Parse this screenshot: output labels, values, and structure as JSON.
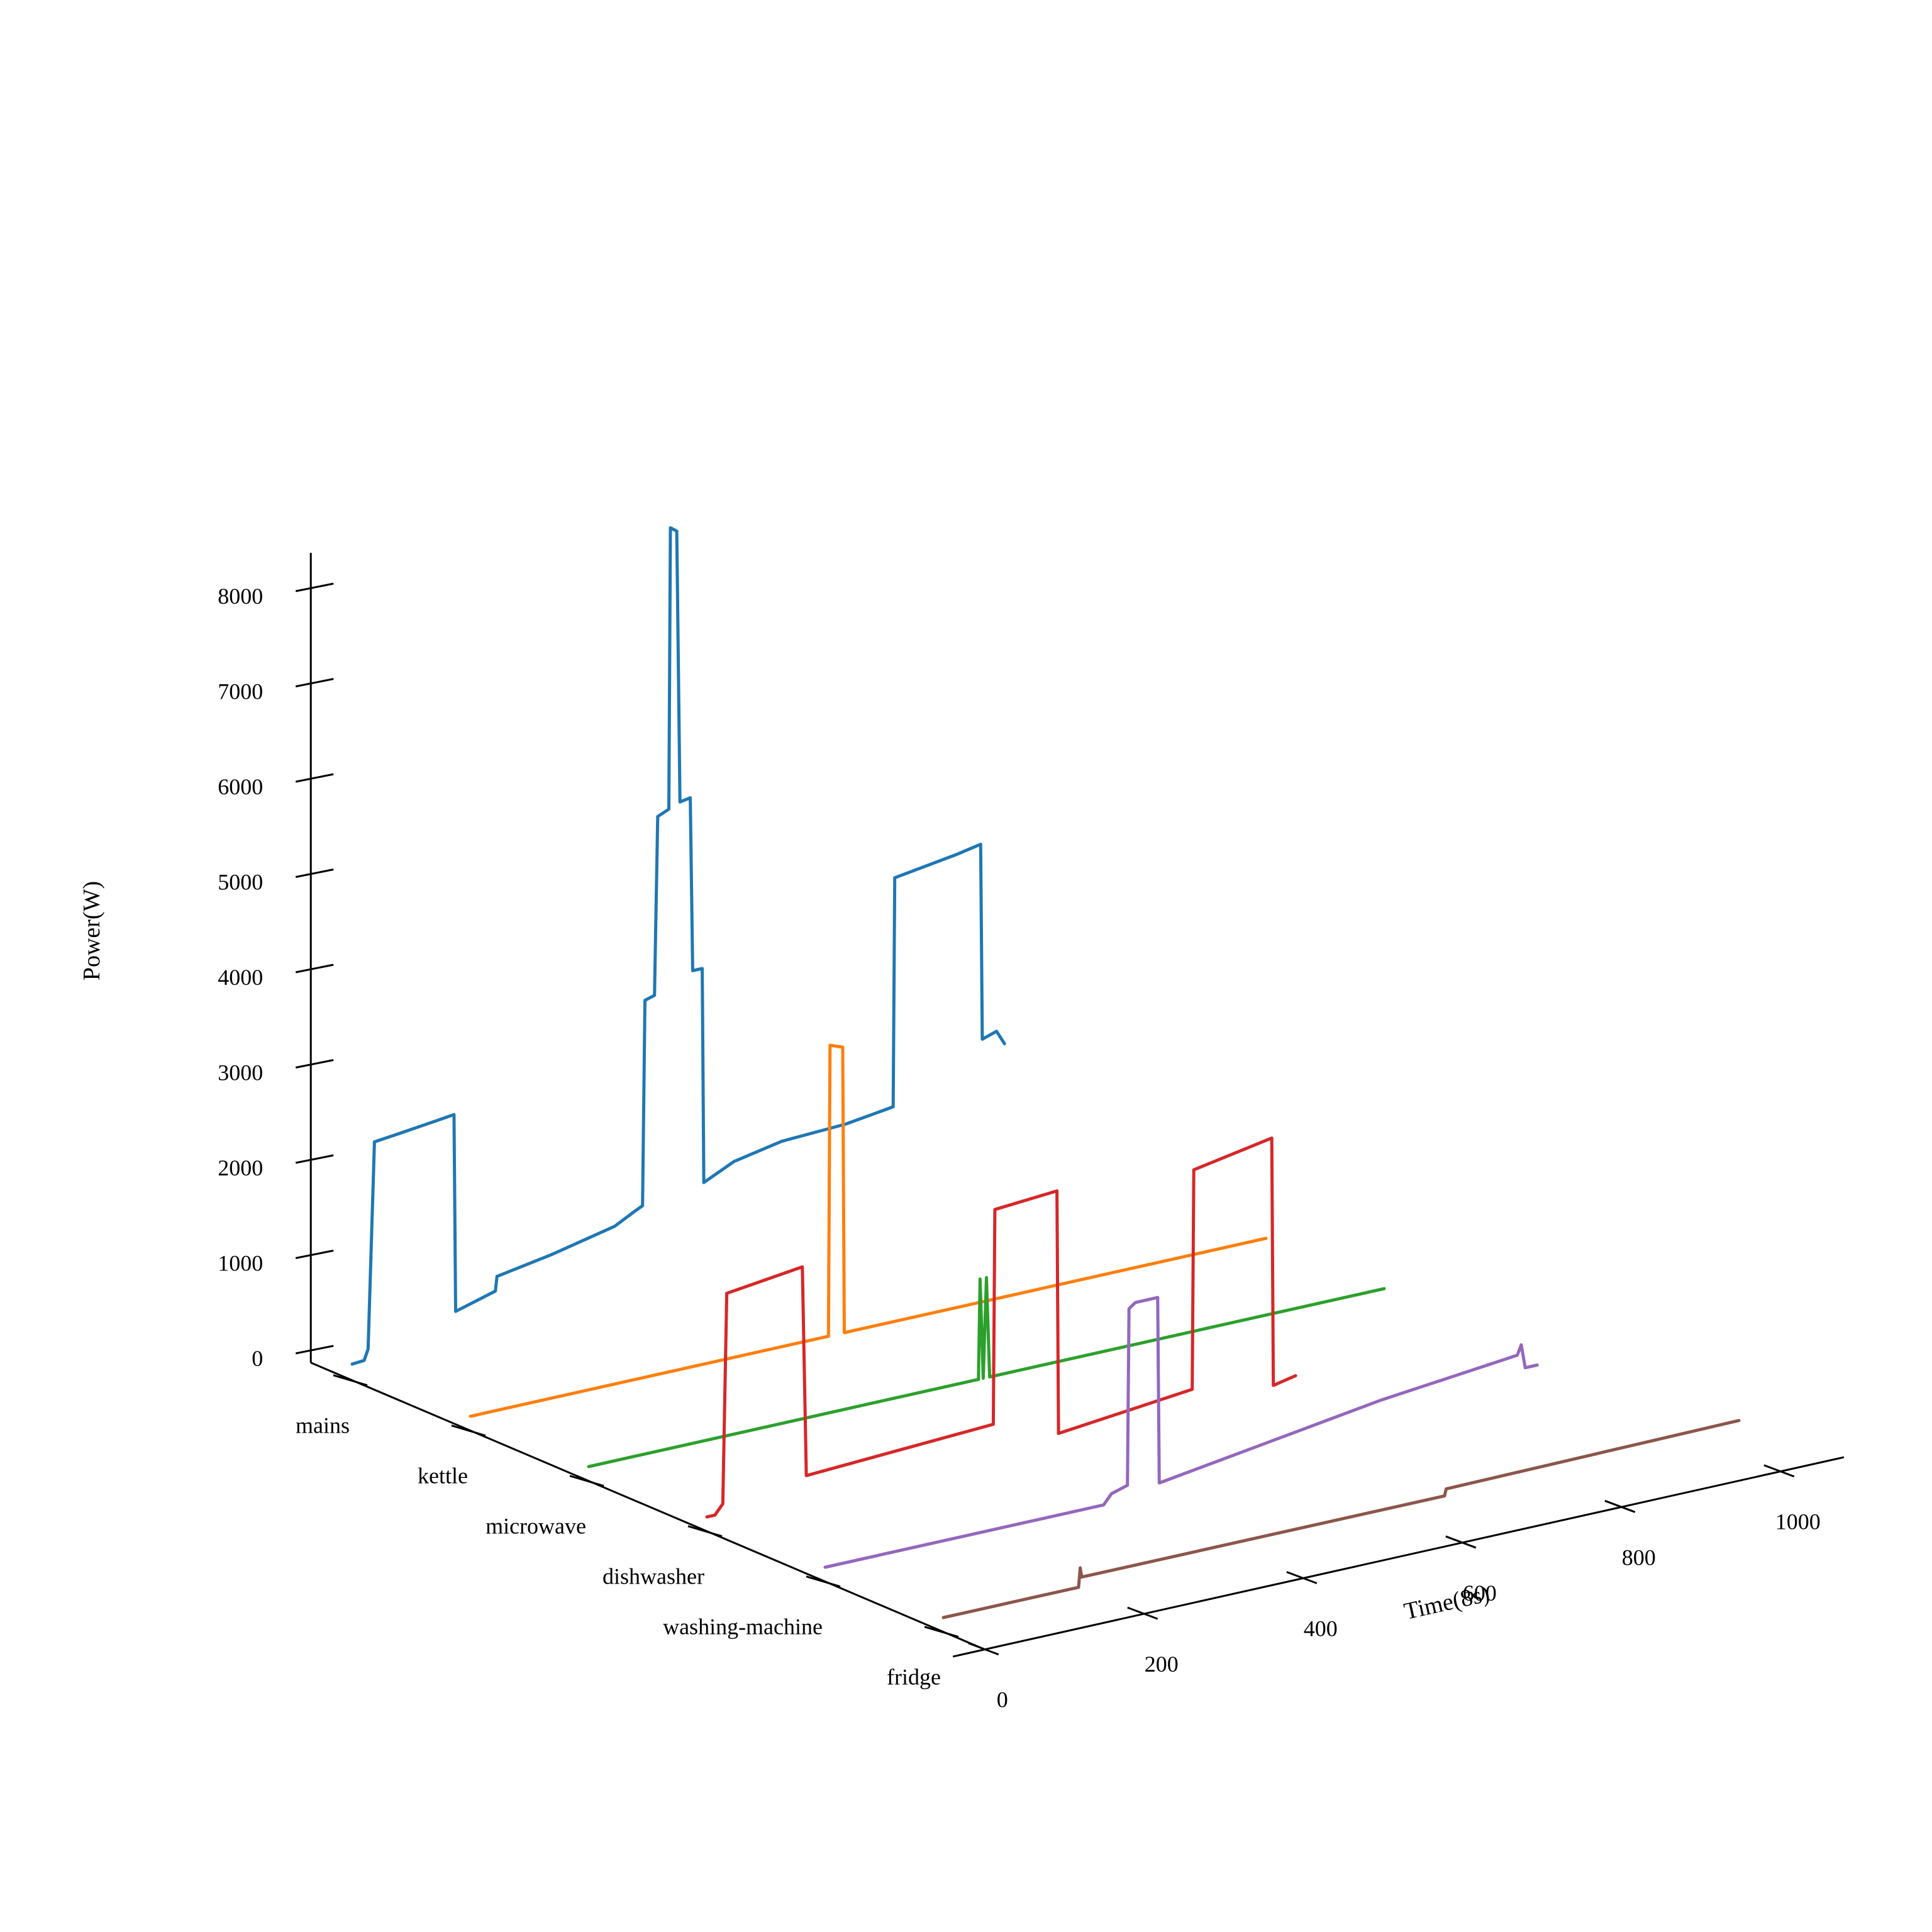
{
  "chart_data": {
    "type": "line",
    "subtype": "3d-waterfall",
    "title": "",
    "xlabel": "Time(8s)",
    "ylabel": "",
    "zlabel": "Power(W)",
    "x_ticks": [
      0,
      200,
      400,
      600,
      800,
      1000
    ],
    "z_ticks": [
      0,
      1000,
      2000,
      3000,
      4000,
      5000,
      6000,
      7000,
      8000
    ],
    "y_categories": [
      "mains",
      "kettle",
      "microwave",
      "dishwasher",
      "washing-machine",
      "fridge"
    ],
    "xlim": [
      0,
      1000
    ],
    "zlim": [
      0,
      8000
    ],
    "grid": false,
    "series": [
      {
        "name": "mains",
        "color": "#1f77b4",
        "points": [
          [
            0,
            20
          ],
          [
            15,
            30
          ],
          [
            20,
            140
          ],
          [
            28,
            2300
          ],
          [
            60,
            2330
          ],
          [
            110,
            2380
          ],
          [
            128,
            2400
          ],
          [
            130,
            330
          ],
          [
            180,
            450
          ],
          [
            182,
            600
          ],
          [
            250,
            700
          ],
          [
            330,
            850
          ],
          [
            355,
            960
          ],
          [
            365,
            1000
          ],
          [
            368,
            3150
          ],
          [
            380,
            3180
          ],
          [
            384,
            5050
          ],
          [
            398,
            5100
          ],
          [
            400,
            8050
          ],
          [
            408,
            8000
          ],
          [
            412,
            5150
          ],
          [
            425,
            5170
          ],
          [
            428,
            3350
          ],
          [
            440,
            3350
          ],
          [
            442,
            1100
          ],
          [
            480,
            1250
          ],
          [
            540,
            1350
          ],
          [
            620,
            1380
          ],
          [
            680,
            1450
          ],
          [
            682,
            3850
          ],
          [
            760,
            3950
          ],
          [
            790,
            4000
          ],
          [
            792,
            1950
          ],
          [
            810,
            2000
          ],
          [
            820,
            1850
          ]
        ]
      },
      {
        "name": "kettle",
        "color": "#ff7f0e",
        "points": [
          [
            0,
            0
          ],
          [
            450,
            0
          ],
          [
            452,
            3050
          ],
          [
            468,
            3000
          ],
          [
            470,
            0
          ],
          [
            1000,
            0
          ]
        ]
      },
      {
        "name": "microwave",
        "color": "#2ca02c",
        "points": [
          [
            0,
            0
          ],
          [
            490,
            0
          ],
          [
            492,
            1050
          ],
          [
            496,
            0
          ],
          [
            500,
            1050
          ],
          [
            504,
            0
          ],
          [
            1000,
            0
          ]
        ]
      },
      {
        "name": "dishwasher",
        "color": "#d62728",
        "points": [
          [
            0,
            0
          ],
          [
            10,
            0
          ],
          [
            20,
            100
          ],
          [
            25,
            2300
          ],
          [
            120,
            2400
          ],
          [
            125,
            200
          ],
          [
            360,
            300
          ],
          [
            362,
            2550
          ],
          [
            440,
            2600
          ],
          [
            442,
            50
          ],
          [
            610,
            200
          ],
          [
            612,
            2500
          ],
          [
            710,
            2650
          ],
          [
            712,
            50
          ],
          [
            740,
            100
          ]
        ]
      },
      {
        "name": "washing-machine",
        "color": "#9467bd",
        "points": [
          [
            0,
            0
          ],
          [
            350,
            0
          ],
          [
            360,
            100
          ],
          [
            380,
            150
          ],
          [
            382,
            2000
          ],
          [
            390,
            2050
          ],
          [
            418,
            2050
          ],
          [
            420,
            100
          ],
          [
            540,
            250
          ],
          [
            700,
            450
          ],
          [
            870,
            600
          ],
          [
            875,
            700
          ],
          [
            880,
            450
          ],
          [
            895,
            450
          ]
        ]
      },
      {
        "name": "fridge",
        "color": "#8c564b",
        "points": [
          [
            0,
            0
          ],
          [
            170,
            0
          ],
          [
            172,
            200
          ],
          [
            174,
            100
          ],
          [
            630,
            100
          ],
          [
            632,
            170
          ],
          [
            1000,
            200
          ]
        ]
      }
    ]
  }
}
